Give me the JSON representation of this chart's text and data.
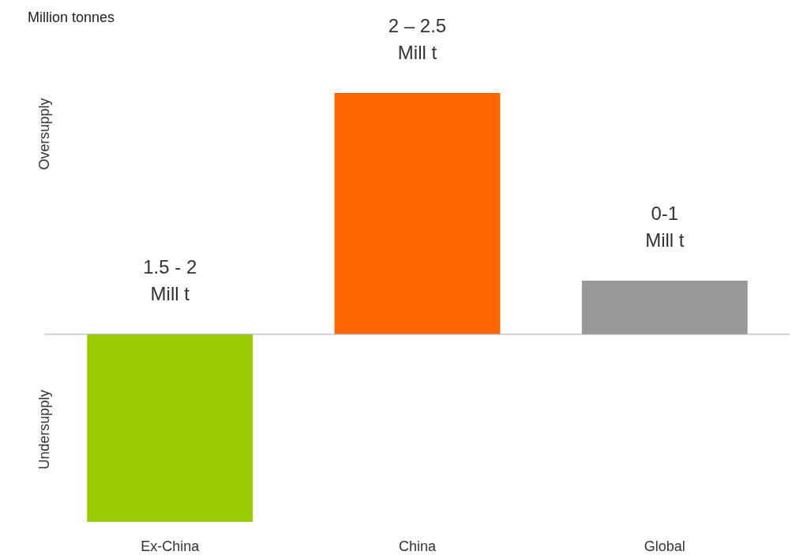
{
  "chart_data": {
    "type": "bar",
    "ylabel": "Million tonnes",
    "categories": [
      "Ex-China",
      "China",
      "Global"
    ],
    "values": [
      -1.75,
      2.25,
      0.5
    ],
    "colors": [
      "#99cc00",
      "#ff6600",
      "#999999"
    ],
    "value_labels": [
      "1.5 - 2\nMill t",
      "2 – 2.5\nMill t",
      "0-1\nMill t"
    ],
    "annotations": [
      "Oversupply",
      "Undersupply"
    ],
    "grid": false,
    "tick_labels": "x"
  }
}
